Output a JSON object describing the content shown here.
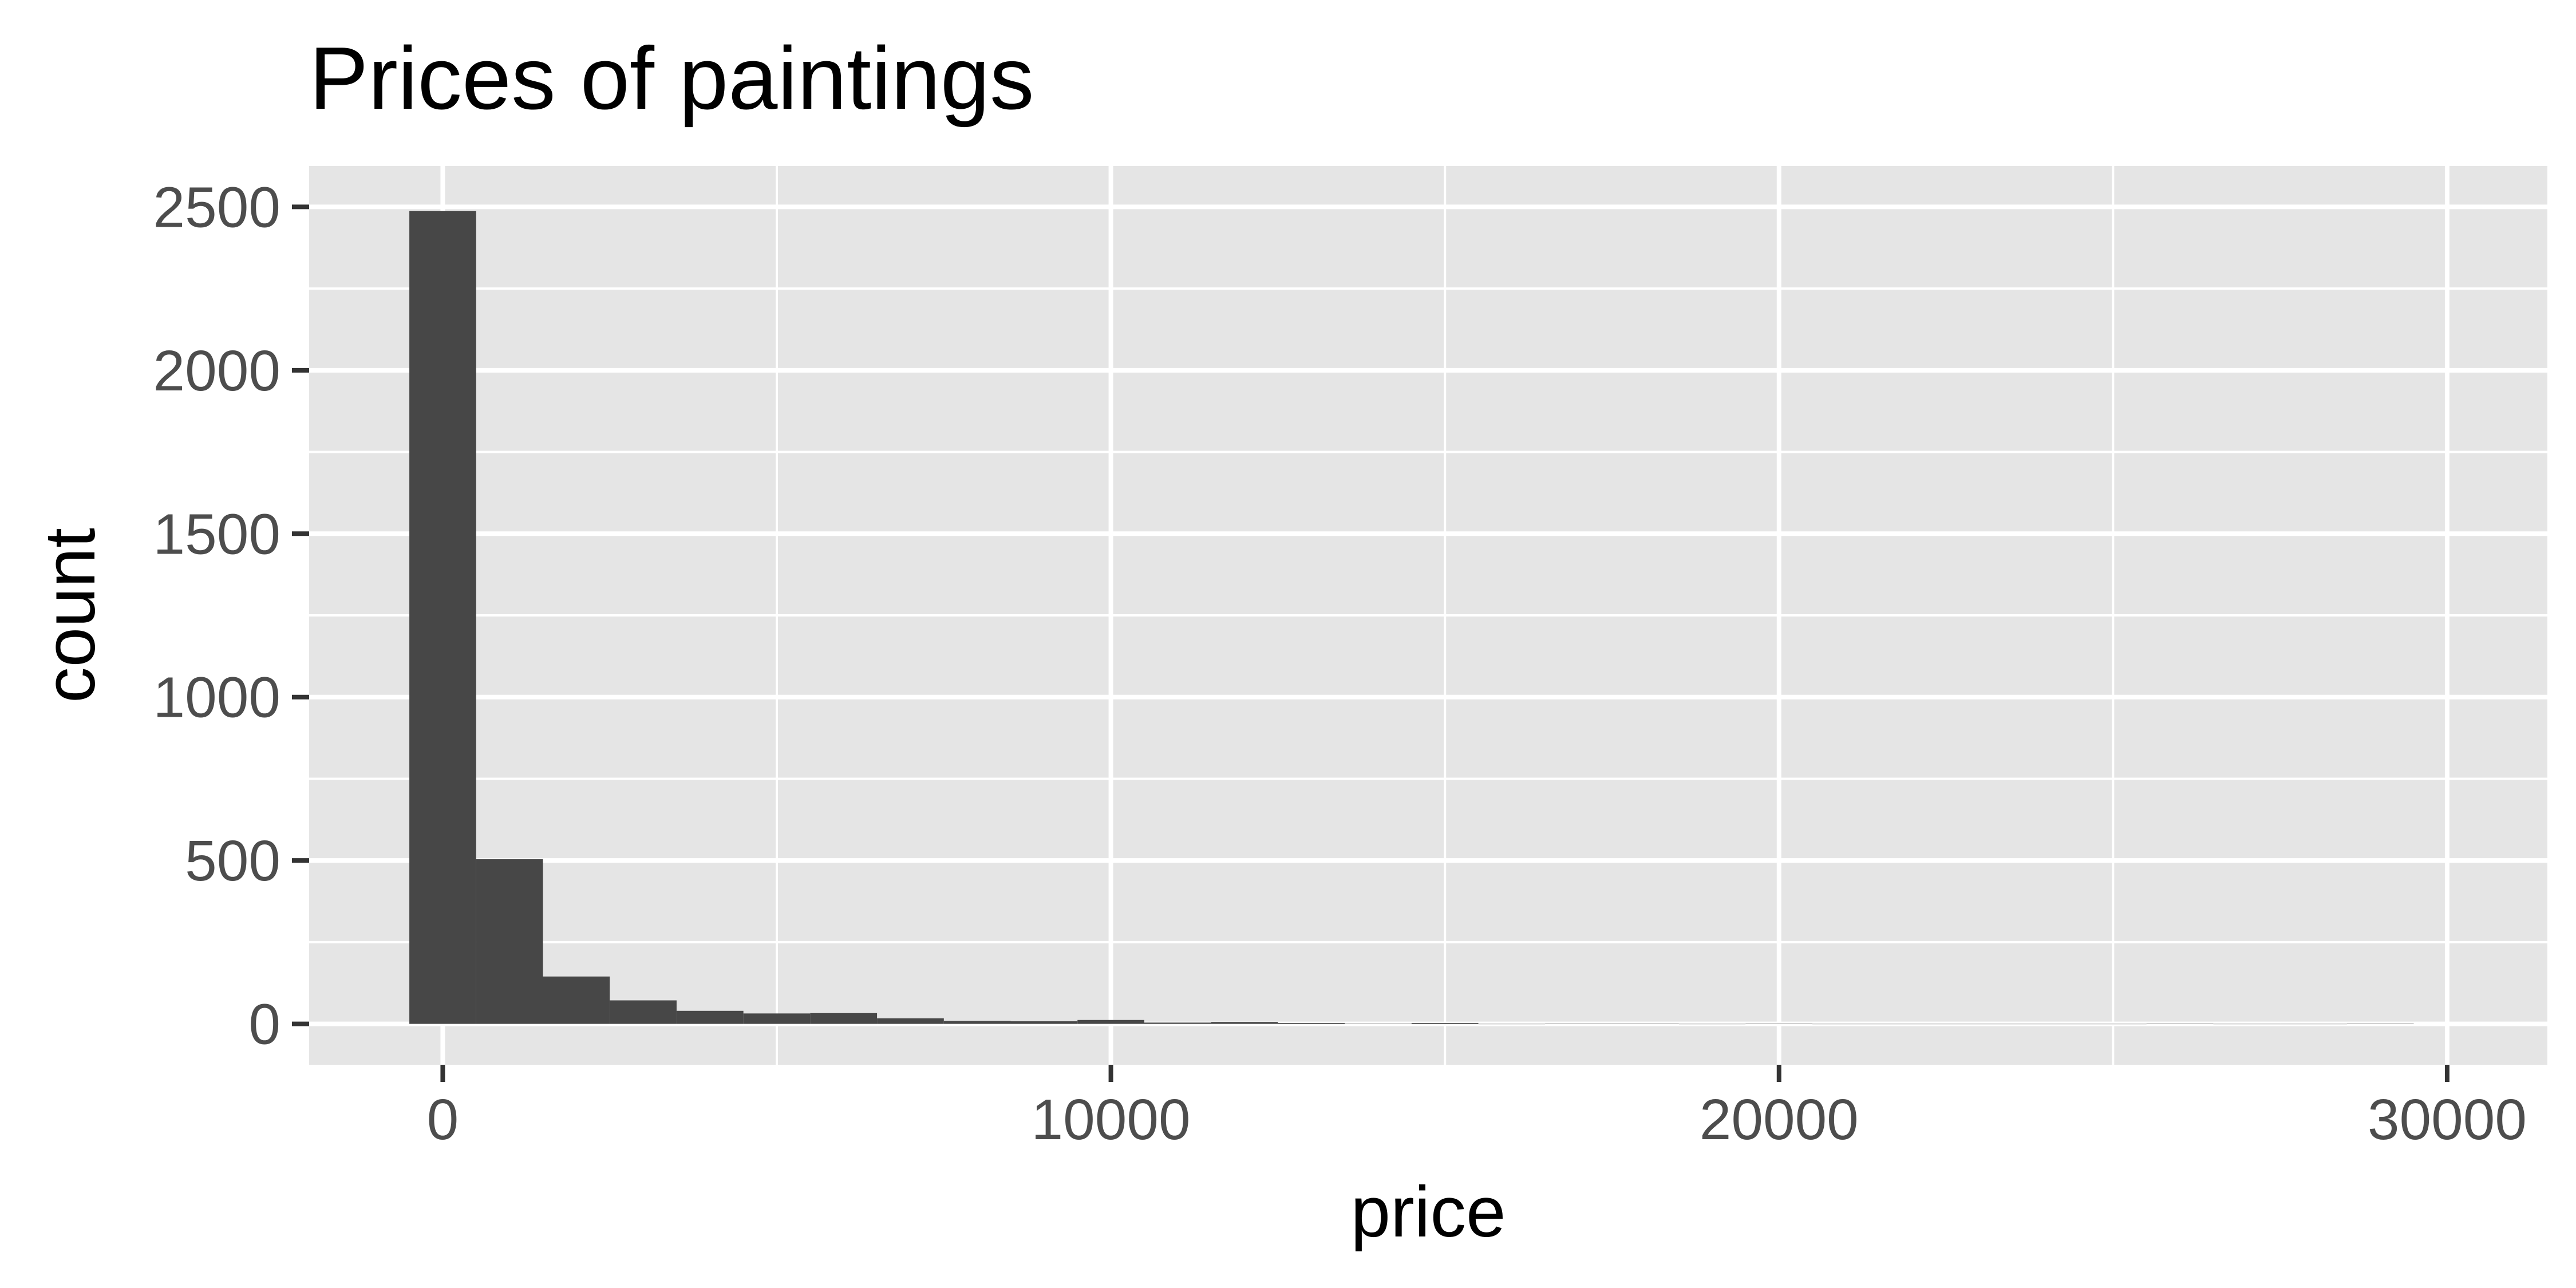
{
  "chart_data": {
    "type": "histogram",
    "title": "Prices of paintings",
    "xlabel": "price",
    "ylabel": "count",
    "xlim": [
      -2000,
      31500
    ],
    "ylim": [
      -125,
      2625
    ],
    "x_ticks": [
      0,
      10000,
      20000,
      30000
    ],
    "y_ticks": [
      0,
      500,
      1000,
      1500,
      2000,
      2500
    ],
    "bin_width": 1000,
    "bins": [
      {
        "x": 0,
        "count": 2487
      },
      {
        "x": 1000,
        "count": 504
      },
      {
        "x": 2000,
        "count": 145
      },
      {
        "x": 3000,
        "count": 72
      },
      {
        "x": 4000,
        "count": 40
      },
      {
        "x": 5000,
        "count": 32
      },
      {
        "x": 6000,
        "count": 33
      },
      {
        "x": 7000,
        "count": 17
      },
      {
        "x": 8000,
        "count": 9
      },
      {
        "x": 9000,
        "count": 8
      },
      {
        "x": 10000,
        "count": 12
      },
      {
        "x": 11000,
        "count": 4
      },
      {
        "x": 12000,
        "count": 6
      },
      {
        "x": 13000,
        "count": 3
      },
      {
        "x": 14000,
        "count": 1
      },
      {
        "x": 15000,
        "count": 3
      },
      {
        "x": 16000,
        "count": 0
      },
      {
        "x": 17000,
        "count": 1
      },
      {
        "x": 18000,
        "count": 1
      },
      {
        "x": 19000,
        "count": 0
      },
      {
        "x": 20000,
        "count": 1
      },
      {
        "x": 21000,
        "count": 0
      },
      {
        "x": 22000,
        "count": 0
      },
      {
        "x": 23000,
        "count": 0
      },
      {
        "x": 24000,
        "count": 0
      },
      {
        "x": 25000,
        "count": 0
      },
      {
        "x": 26000,
        "count": 1
      },
      {
        "x": 27000,
        "count": 0
      },
      {
        "x": 28000,
        "count": 0
      },
      {
        "x": 29000,
        "count": 1
      }
    ],
    "colors": {
      "panel": "#e5e5e5",
      "grid": "#ffffff",
      "bar": "#474747",
      "tick": "#333333"
    },
    "grid": true
  }
}
